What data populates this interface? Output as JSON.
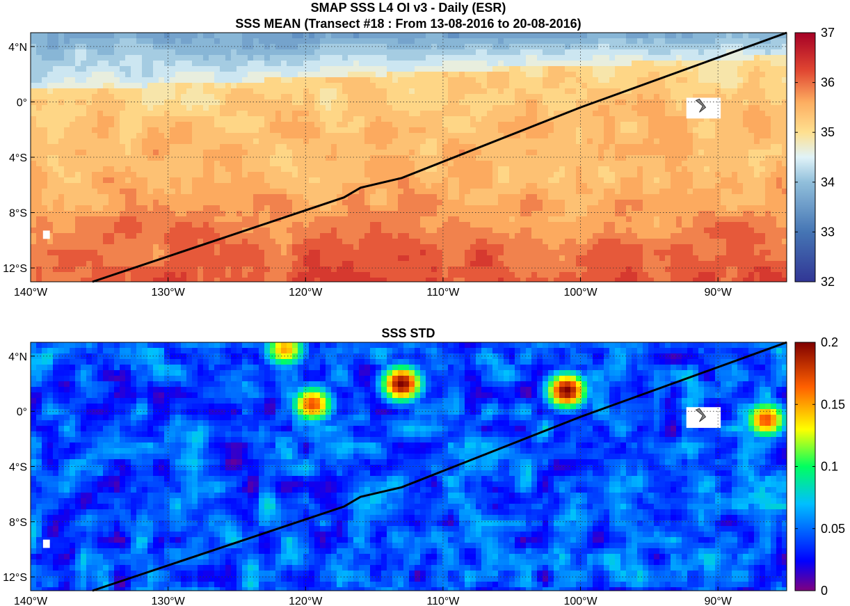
{
  "figure": {
    "title_line1": "SMAP SSS L4 OI v3 - Daily (ESR)",
    "title_line2": "SSS MEAN (Transect #18 : From 13-08-2016 to 20-08-2016)"
  },
  "chart_data": [
    {
      "type": "heatmap",
      "id": "mean",
      "title": "SSS MEAN (Transect #18 : From 13-08-2016 to 20-08-2016)",
      "xlim": [
        -140,
        -85
      ],
      "ylim": [
        -13,
        5
      ],
      "x_ticks": [
        {
          "value": -140,
          "label": "140°W"
        },
        {
          "value": -130,
          "label": "130°W"
        },
        {
          "value": -120,
          "label": "120°W"
        },
        {
          "value": -110,
          "label": "110°W"
        },
        {
          "value": -100,
          "label": "100°W"
        },
        {
          "value": -90,
          "label": "90°W"
        }
      ],
      "y_ticks": [
        {
          "value": 4,
          "label": "4°N"
        },
        {
          "value": 0,
          "label": "0°"
        },
        {
          "value": -4,
          "label": "4°S"
        },
        {
          "value": -8,
          "label": "8°S"
        },
        {
          "value": -12,
          "label": "12°S"
        }
      ],
      "colorbar": {
        "min": 32,
        "max": 37,
        "ticks": [
          32,
          33,
          34,
          35,
          36,
          37
        ],
        "colormap": "diverging-blue-red"
      },
      "grid": "dotted",
      "transect": [
        [
          -135.5,
          -13
        ],
        [
          -117.2,
          -6.9
        ],
        [
          -116,
          -6.2
        ],
        [
          -113,
          -5.5
        ],
        [
          -100,
          -0.4
        ],
        [
          -85,
          5
        ]
      ]
    },
    {
      "type": "heatmap",
      "id": "std",
      "title": "SSS STD",
      "xlim": [
        -140,
        -85
      ],
      "ylim": [
        -13,
        5
      ],
      "x_ticks": [
        {
          "value": -140,
          "label": "140°W"
        },
        {
          "value": -130,
          "label": "130°W"
        },
        {
          "value": -120,
          "label": "120°W"
        },
        {
          "value": -110,
          "label": "110°W"
        },
        {
          "value": -100,
          "label": "100°W"
        },
        {
          "value": -90,
          "label": "90°W"
        }
      ],
      "y_ticks": [
        {
          "value": 4,
          "label": "4°N"
        },
        {
          "value": 0,
          "label": "0°"
        },
        {
          "value": -4,
          "label": "4°S"
        },
        {
          "value": -8,
          "label": "8°S"
        },
        {
          "value": -12,
          "label": "12°S"
        }
      ],
      "colorbar": {
        "min": 0,
        "max": 0.2,
        "ticks": [
          {
            "value": 0,
            "label": "0"
          },
          {
            "value": 0.05,
            "label": "0.05"
          },
          {
            "value": 0.1,
            "label": "0.1"
          },
          {
            "value": 0.15,
            "label": "0.15"
          },
          {
            "value": 0.2,
            "label": "0.2"
          }
        ],
        "colormap": "jet"
      },
      "grid": "dotted",
      "transect": [
        [
          -135.5,
          -13
        ],
        [
          -117.2,
          -6.9
        ],
        [
          -116,
          -6.2
        ],
        [
          -113,
          -5.5
        ],
        [
          -100,
          -0.4
        ],
        [
          -85,
          5
        ]
      ],
      "hotspots": [
        {
          "lon": -113,
          "lat": 2,
          "value": 0.2
        },
        {
          "lon": -101,
          "lat": 1.5,
          "value": 0.2
        },
        {
          "lon": -119.5,
          "lat": 0.5,
          "value": 0.17
        },
        {
          "lon": -86.5,
          "lat": -0.6,
          "value": 0.17
        },
        {
          "lon": -121.5,
          "lat": 4.5,
          "value": 0.15
        }
      ]
    }
  ]
}
